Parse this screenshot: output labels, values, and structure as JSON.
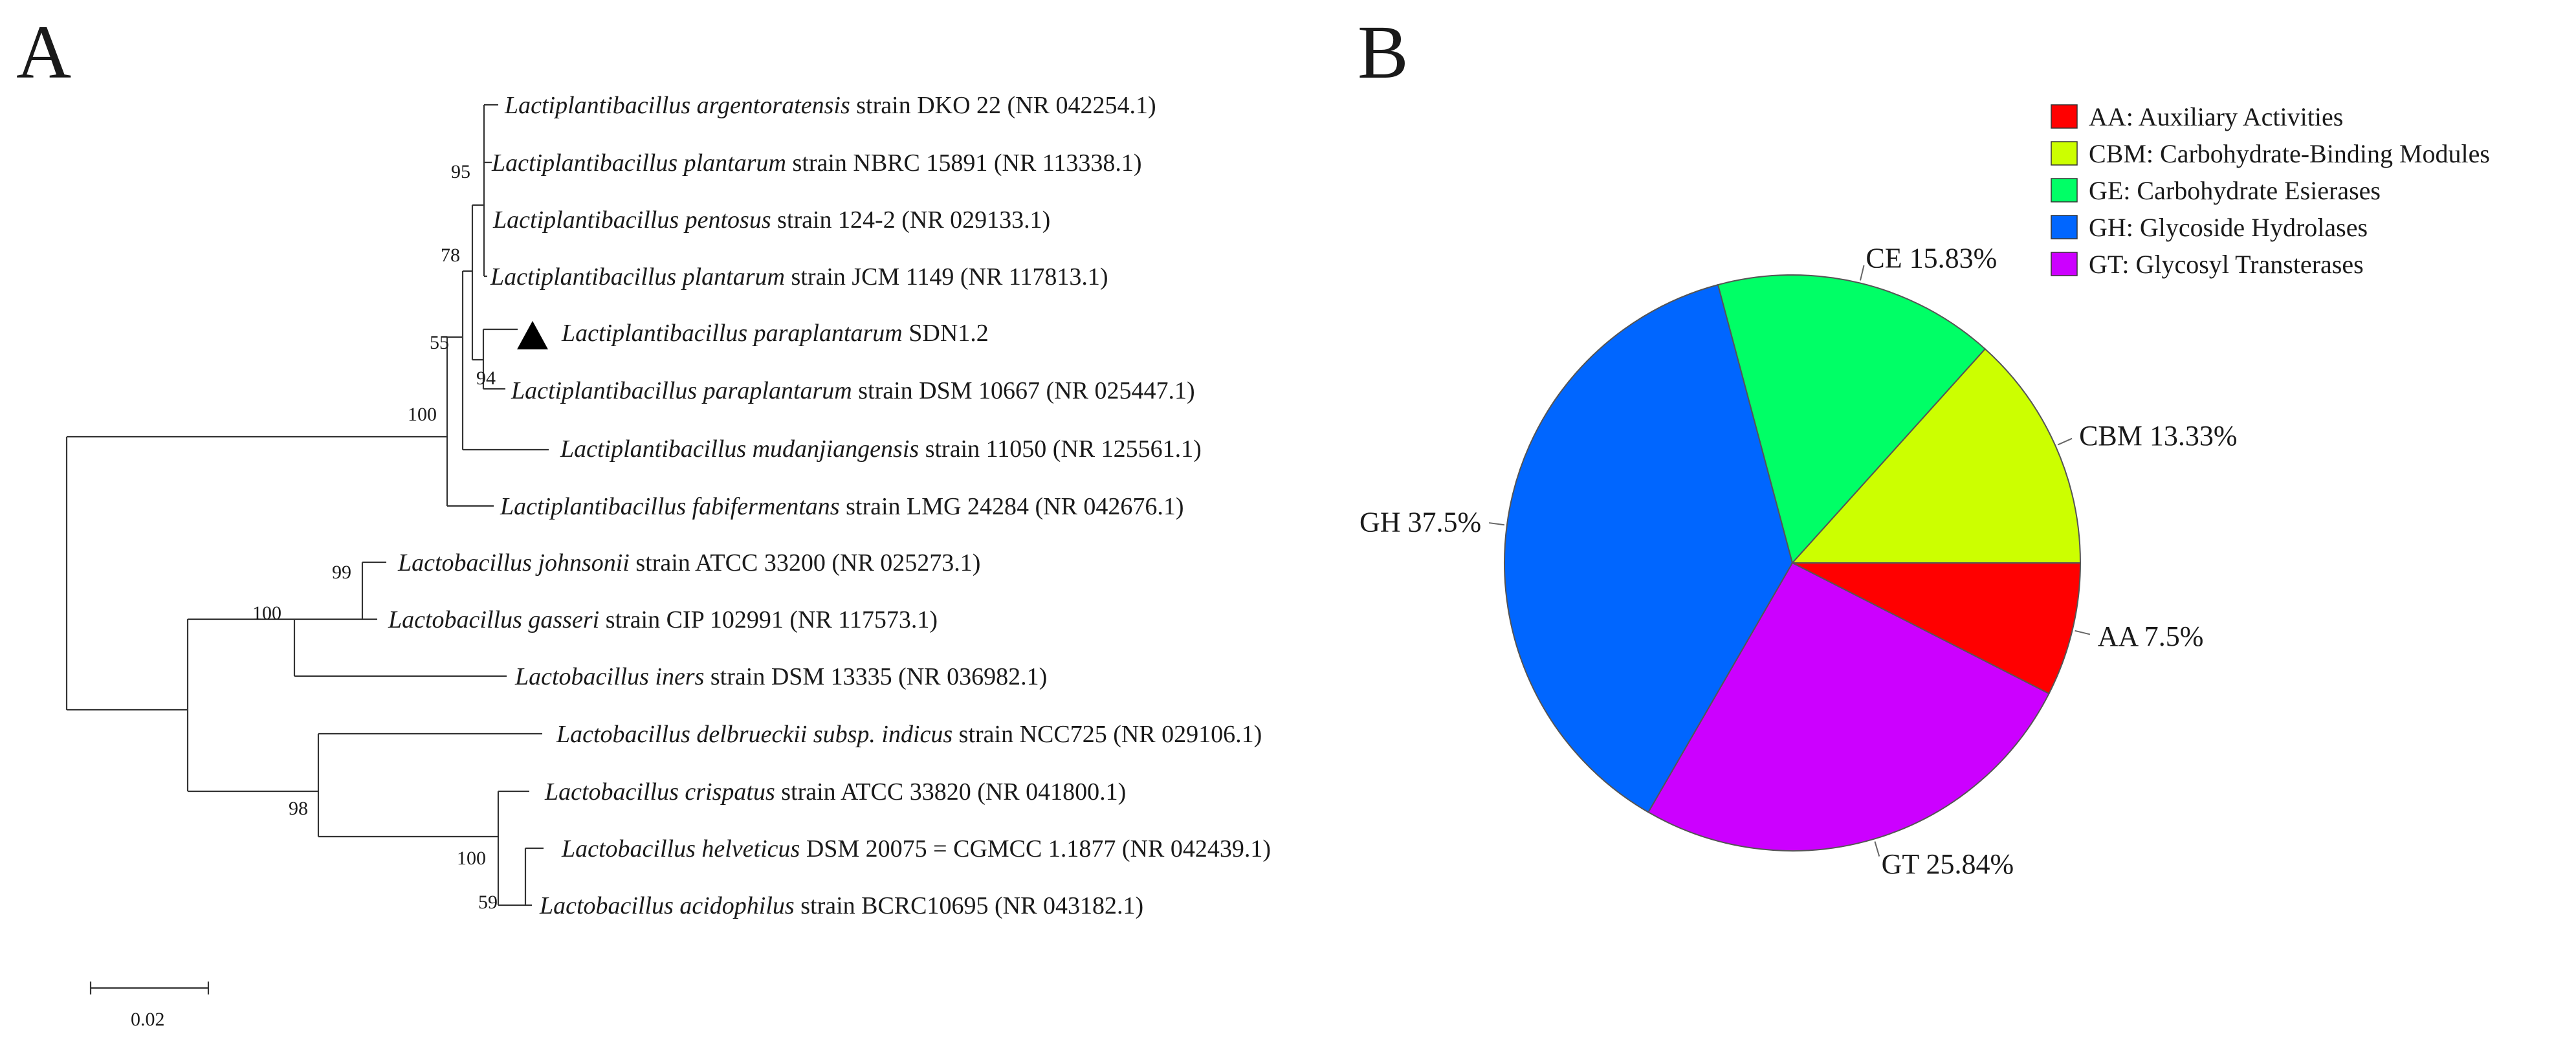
{
  "panel_a": {
    "label": "A",
    "scale_bar_label": "0.02",
    "bootstrap": [
      "95",
      "78",
      "55",
      "94",
      "100",
      "99",
      "100",
      "98",
      "100",
      "59"
    ],
    "taxa": [
      {
        "species": "Lactiplantibacillus argentoratensis",
        "rest": " strain DKO 22 (NR 042254.1)"
      },
      {
        "species": "Lactiplantibacillus plantarum",
        "rest": " strain NBRC 15891 (NR 113338.1)"
      },
      {
        "species": "Lactiplantibacillus pentosus",
        "rest": " strain 124-2 (NR 029133.1)"
      },
      {
        "species": "Lactiplantibacillus plantarum",
        "rest": " strain JCM 1149 (NR 117813.1)"
      },
      {
        "species": "Lactiplantibacillus paraplantarum",
        "rest": " SDN1.2"
      },
      {
        "species": "Lactiplantibacillus paraplantarum",
        "rest": " strain DSM 10667 (NR 025447.1)"
      },
      {
        "species": "Lactiplantibacillus mudanjiangensis",
        "rest": " strain 11050 (NR 125561.1)"
      },
      {
        "species": "Lactiplantibacillus fabifermentans",
        "rest": " strain LMG 24284 (NR 042676.1)"
      },
      {
        "species": "Lactobacillus johnsonii",
        "rest": " strain ATCC 33200 (NR 025273.1)"
      },
      {
        "species": "Lactobacillus gasseri",
        "rest": " strain CIP 102991 (NR 117573.1)"
      },
      {
        "species": "Lactobacillus iners",
        "rest": " strain DSM 13335 (NR 036982.1)"
      },
      {
        "species": "Lactobacillus delbrueckii subsp. indicus",
        "rest": " strain NCC725 (NR 029106.1)"
      },
      {
        "species": "Lactobacillus crispatus",
        "rest": " strain ATCC 33820 (NR 041800.1)"
      },
      {
        "species": "Lactobacillus helveticus",
        "rest": " DSM 20075 = CGMCC 1.1877 (NR 042439.1)"
      },
      {
        "species": "Lactobacillus acidophilus",
        "rest": " strain BCRC10695 (NR 043182.1)"
      }
    ]
  },
  "panel_b": {
    "label": "B"
  },
  "chart_data": {
    "type": "pie",
    "slices": [
      {
        "key": "AA",
        "label": "AA 7.5%",
        "value": 7.5,
        "color": "#ff0000"
      },
      {
        "key": "GT",
        "label": "GT 25.84%",
        "value": 25.84,
        "color": "#cc00ff"
      },
      {
        "key": "GH",
        "label": "GH 37.5%",
        "value": 37.5,
        "color": "#0066ff"
      },
      {
        "key": "CE",
        "label": "CE 15.83%",
        "value": 15.83,
        "color": "#00ff66"
      },
      {
        "key": "CBM",
        "label": "CBM 13.33%",
        "value": 13.33,
        "color": "#ccff00"
      }
    ],
    "legend": [
      {
        "text": "AA: Auxiliary Activities",
        "color": "#ff0000"
      },
      {
        "text": "CBM: Carbohydrate-Binding Modules",
        "color": "#ccff00"
      },
      {
        "text": "GE: Carbohydrate Esierases",
        "color": "#00ff66"
      },
      {
        "text": "GH: Glycoside Hydrolases",
        "color": "#0066ff"
      },
      {
        "text": "GT: Glycosyl Transterases",
        "color": "#cc00ff"
      }
    ],
    "legend_position": "top-right"
  }
}
